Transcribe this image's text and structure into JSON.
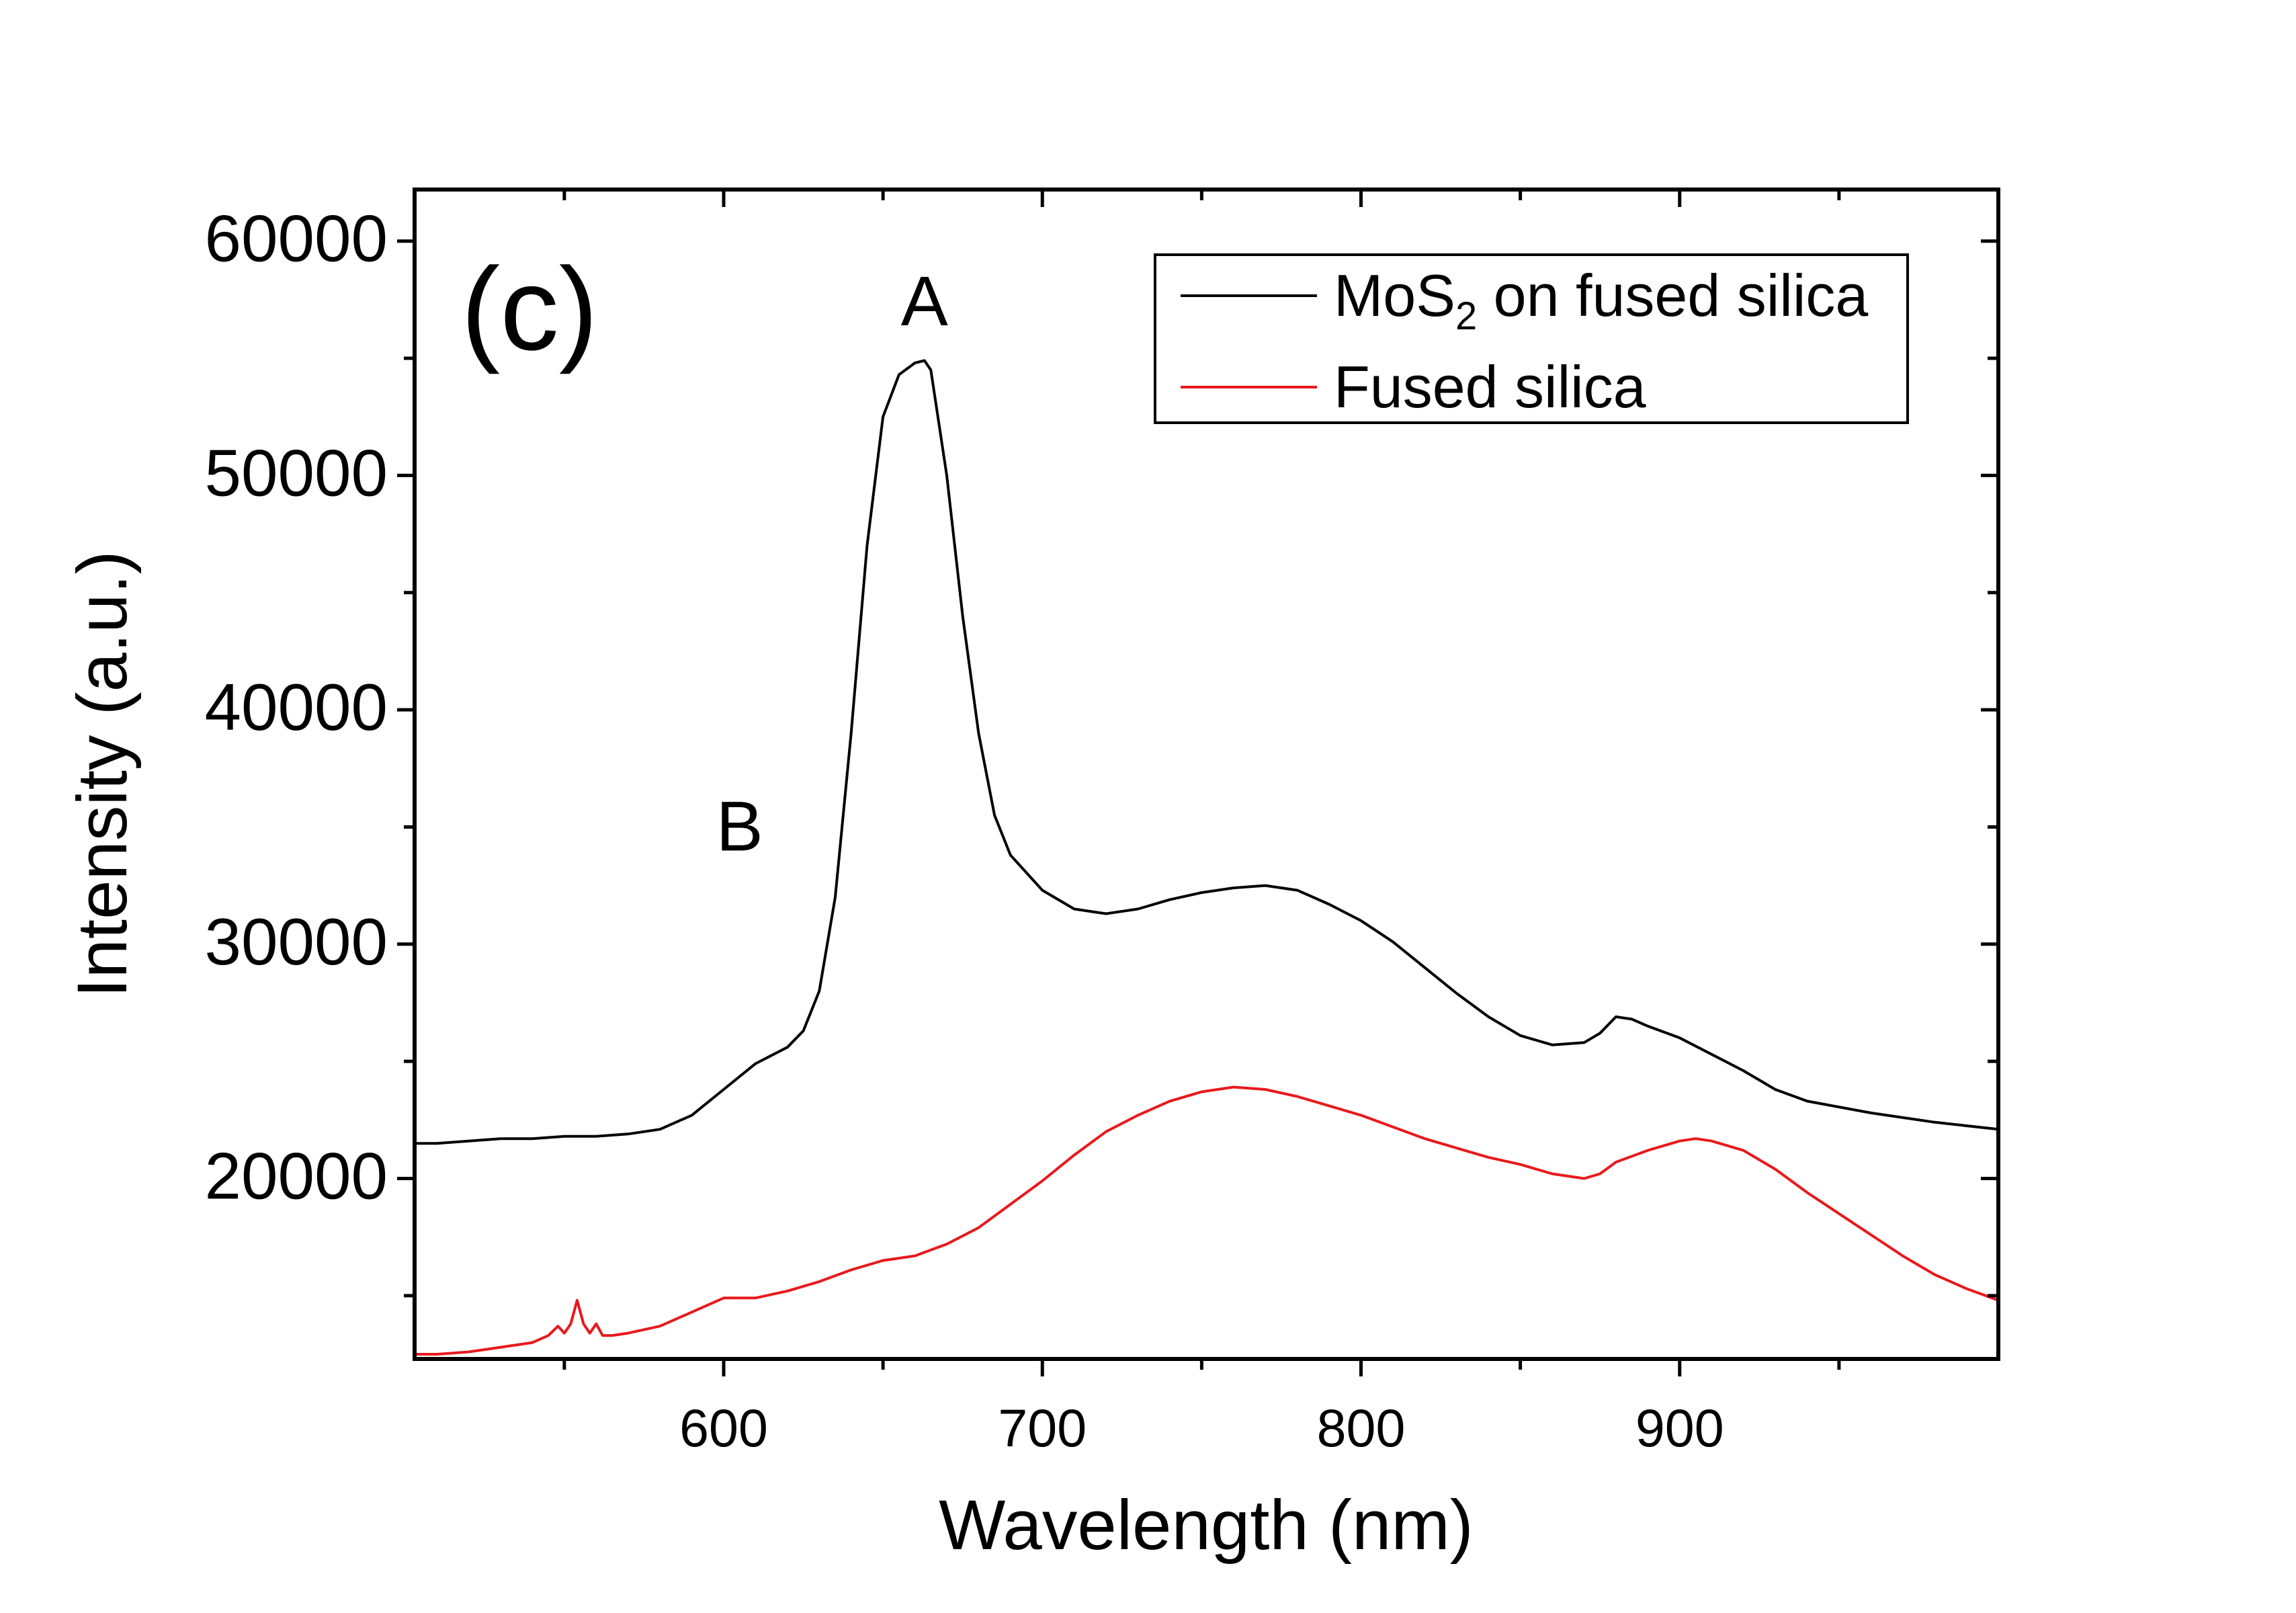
{
  "chart_data": {
    "type": "line",
    "panel_label": "(c)",
    "xlabel": "Wavelength (nm)",
    "ylabel": "Intensity (a.u.)",
    "xlim": [
      503,
      1000
    ],
    "ylim": [
      12300,
      62200
    ],
    "x_ticks": [
      600,
      700,
      800,
      900
    ],
    "x_minor_ticks": [
      550,
      650,
      750,
      850,
      950
    ],
    "x_tick_labels": [
      "600",
      "700",
      "800",
      "900"
    ],
    "y_ticks": [
      20000,
      30000,
      40000,
      50000,
      60000
    ],
    "y_minor_ticks": [
      15000,
      25000,
      35000,
      45000,
      55000
    ],
    "y_tick_labels": [
      "20000",
      "30000",
      "40000",
      "50000",
      "60000"
    ],
    "grid": false,
    "legend_position": "top-right",
    "legend": {
      "mos2_main": "MoS",
      "mos2_sub": "2",
      "mos2_rest": " on fused silica",
      "silica": "Fused silica"
    },
    "annotations": [
      {
        "text": "A",
        "x": 663,
        "y": 56400
      },
      {
        "text": "B",
        "x": 605,
        "y": 34000
      }
    ],
    "series": [
      {
        "name": "MoS2 on fused silica",
        "color": "#000000",
        "x": [
          503,
          510,
          520,
          530,
          540,
          550,
          560,
          570,
          580,
          590,
          600,
          610,
          620,
          625,
          630,
          635,
          640,
          645,
          650,
          655,
          660,
          663,
          665,
          670,
          675,
          680,
          685,
          690,
          700,
          710,
          720,
          730,
          740,
          750,
          760,
          770,
          780,
          790,
          800,
          810,
          820,
          830,
          840,
          850,
          860,
          870,
          875,
          880,
          885,
          890,
          900,
          910,
          920,
          930,
          940,
          960,
          980,
          1000
        ],
        "y": [
          21500,
          21500,
          21600,
          21700,
          21700,
          21800,
          21800,
          21900,
          22100,
          22700,
          23800,
          24900,
          25600,
          26300,
          28000,
          32000,
          39000,
          47000,
          52500,
          54300,
          54800,
          54900,
          54500,
          50000,
          44000,
          39000,
          35500,
          33800,
          32300,
          31500,
          31300,
          31500,
          31900,
          32200,
          32400,
          32500,
          32300,
          31700,
          31000,
          30100,
          29000,
          27900,
          26900,
          26100,
          25700,
          25800,
          26200,
          26900,
          26800,
          26500,
          26000,
          25300,
          24600,
          23800,
          23300,
          22800,
          22400,
          22100
        ]
      },
      {
        "name": "Fused silica",
        "color": "#e8191c",
        "x": [
          503,
          510,
          520,
          530,
          540,
          545,
          548,
          550,
          552,
          554,
          556,
          558,
          560,
          562,
          565,
          570,
          580,
          590,
          600,
          610,
          620,
          630,
          640,
          650,
          660,
          670,
          680,
          690,
          700,
          710,
          720,
          730,
          740,
          750,
          760,
          770,
          780,
          790,
          800,
          810,
          820,
          830,
          840,
          850,
          860,
          870,
          875,
          880,
          890,
          900,
          905,
          910,
          920,
          930,
          940,
          950,
          960,
          970,
          980,
          990,
          1000
        ],
        "y": [
          12500,
          12500,
          12600,
          12800,
          13000,
          13300,
          13700,
          13400,
          13800,
          14800,
          13800,
          13400,
          13800,
          13300,
          13300,
          13400,
          13700,
          14300,
          14900,
          14900,
          15200,
          15600,
          16100,
          16500,
          16700,
          17200,
          17900,
          18900,
          19900,
          21000,
          22000,
          22700,
          23300,
          23700,
          23900,
          23800,
          23500,
          23100,
          22700,
          22200,
          21700,
          21300,
          20900,
          20600,
          20200,
          20000,
          20200,
          20700,
          21200,
          21600,
          21700,
          21600,
          21200,
          20400,
          19400,
          18500,
          17600,
          16700,
          15900,
          15300,
          14800
        ]
      }
    ]
  }
}
